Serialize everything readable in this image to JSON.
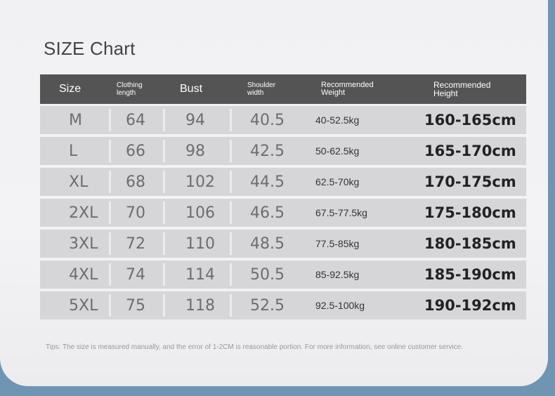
{
  "title": "SIZE Chart",
  "headers": {
    "size": "Size",
    "length_line1": "Clothing",
    "length_line2": "length",
    "bust": "Bust",
    "shoulder_line1": "Shoulder",
    "shoulder_line2": "width",
    "weight_line1": "Recommended",
    "weight_line2": "Weight",
    "height_line1": "Recommended",
    "height_line2": "Height"
  },
  "rows": [
    {
      "size": "M",
      "length": "64",
      "bust": "94",
      "shoulder": "40.5",
      "weight": "40-52.5kg",
      "height": "160-165cm"
    },
    {
      "size": "L",
      "length": "66",
      "bust": "98",
      "shoulder": "42.5",
      "weight": "50-62.5kg",
      "height": "165-170cm"
    },
    {
      "size": "XL",
      "length": "68",
      "bust": "102",
      "shoulder": "44.5",
      "weight": "62.5-70kg",
      "height": "170-175cm"
    },
    {
      "size": "2XL",
      "length": "70",
      "bust": "106",
      "shoulder": "46.5",
      "weight": "67.5-77.5kg",
      "height": "175-180cm"
    },
    {
      "size": "3XL",
      "length": "72",
      "bust": "110",
      "shoulder": "48.5",
      "weight": "77.5-85kg",
      "height": "180-185cm"
    },
    {
      "size": "4XL",
      "length": "74",
      "bust": "114",
      "shoulder": "50.5",
      "weight": "85-92.5kg",
      "height": "185-190cm"
    },
    {
      "size": "5XL",
      "length": "75",
      "bust": "118",
      "shoulder": "52.5",
      "weight": "92.5-100kg",
      "height": "190-192cm"
    }
  ],
  "tips": "Tips: The size is measured manually, and the error of 1-2CM is reasonable portion. For more information, see online customer service."
}
